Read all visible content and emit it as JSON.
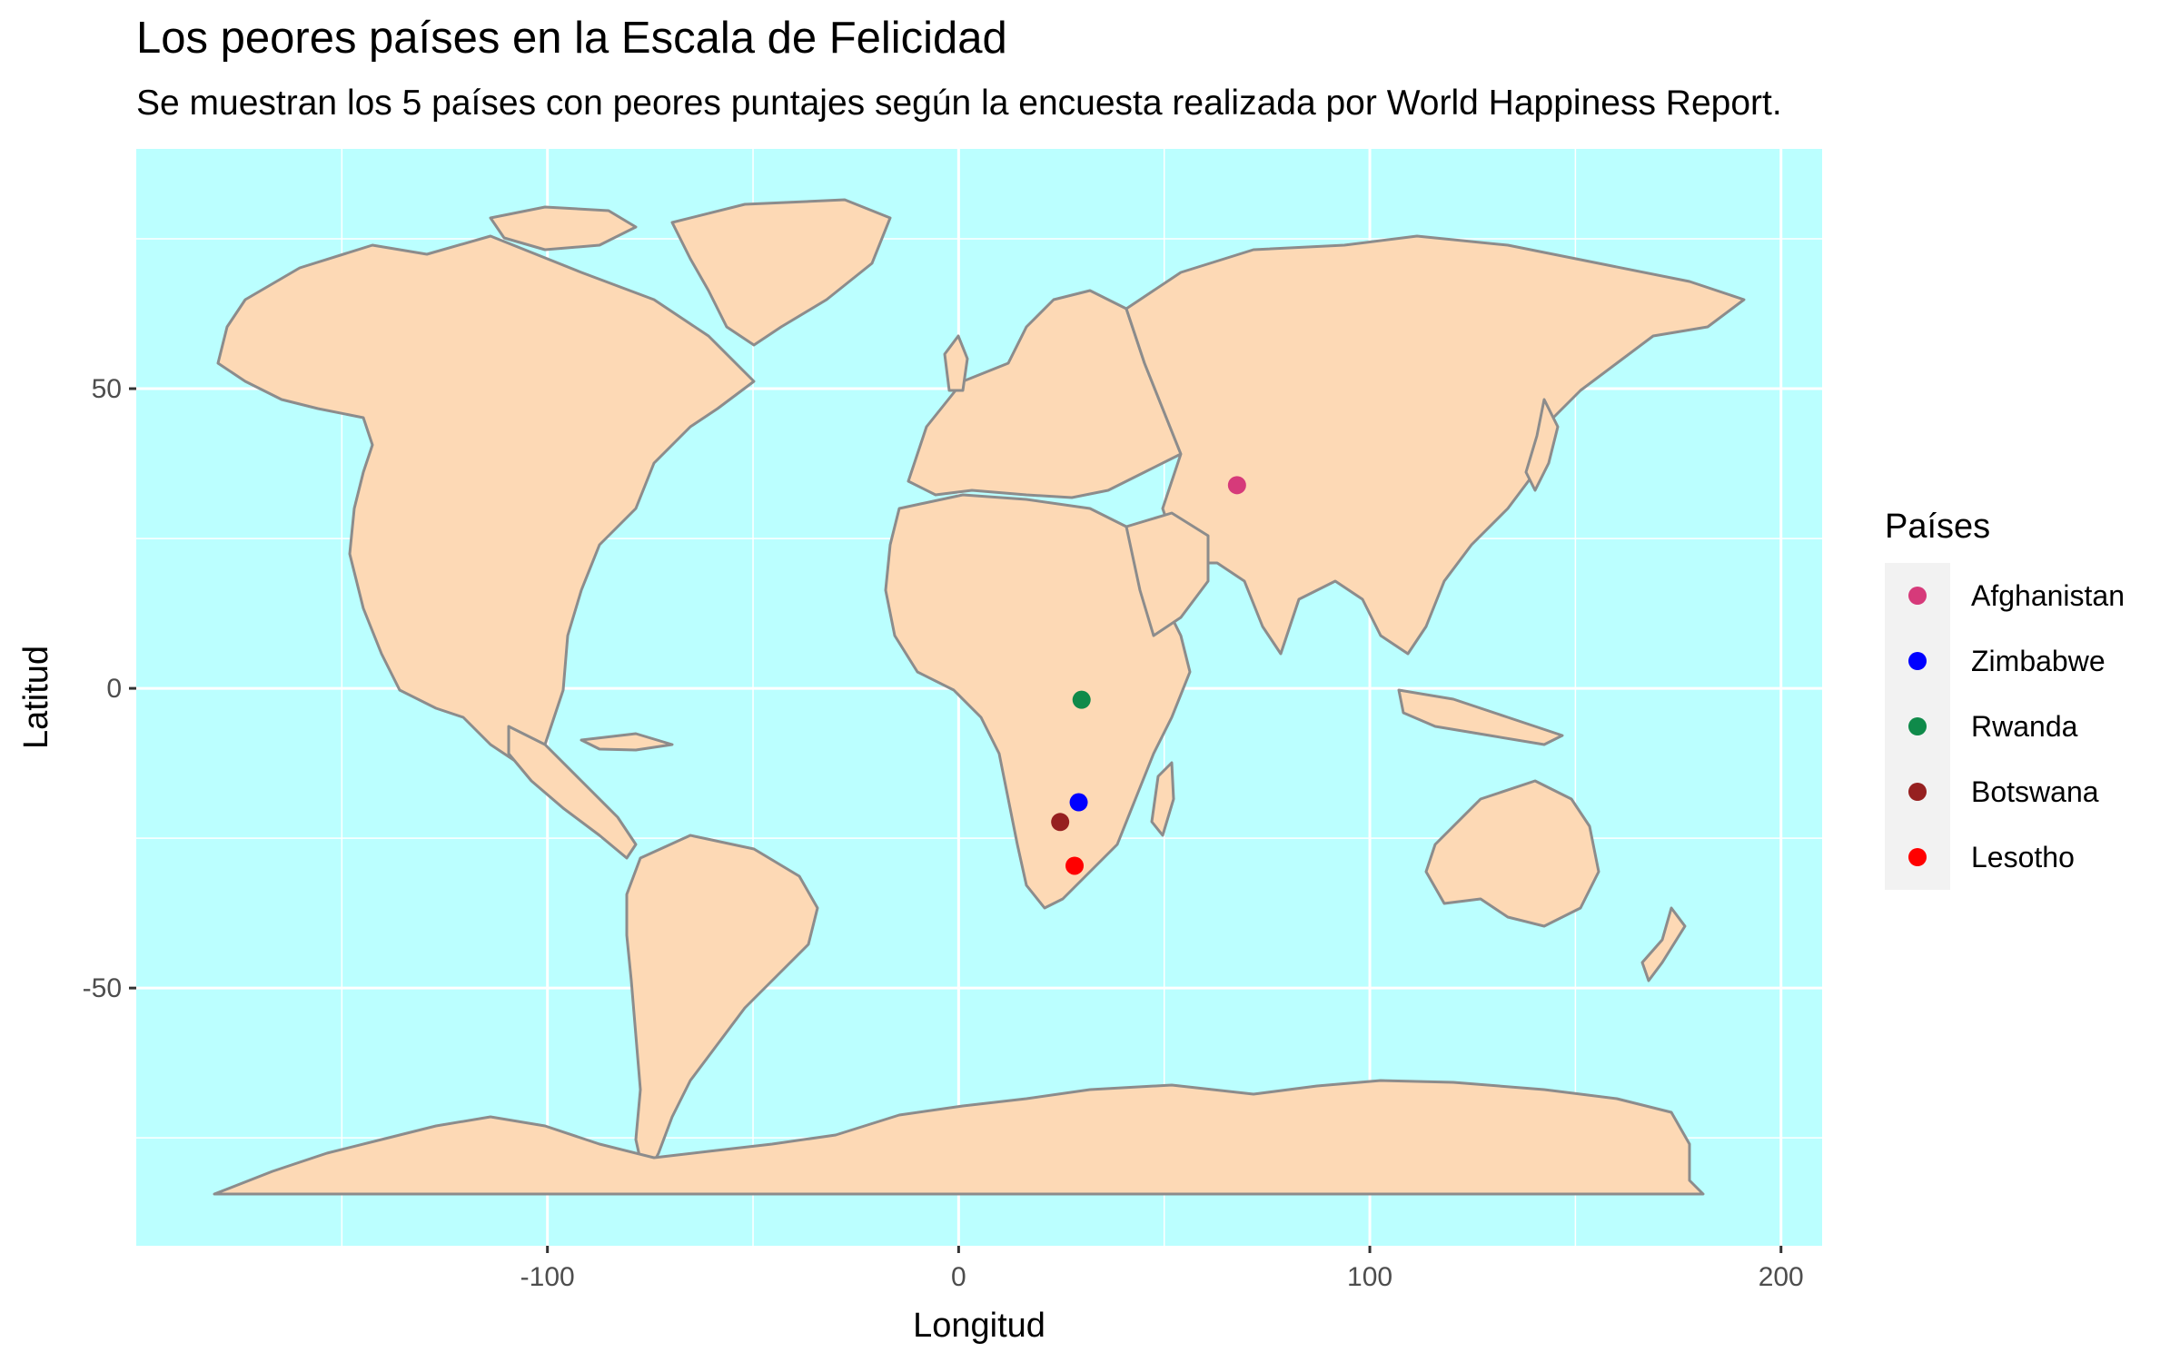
{
  "title": "Los peores países en la Escala de Felicidad",
  "subtitle": "Se muestran los 5 países con peores puntajes según la encuesta realizada por World Happiness Report.",
  "colors": {
    "ocean": "#bbffff",
    "land": "#fdd9b5",
    "border": "#8c8c8c",
    "grid": "#ffffff"
  },
  "chart_data": {
    "type": "scatter",
    "xlabel": "Longitud",
    "ylabel": "Latitud",
    "xlim": [
      -200,
      210
    ],
    "ylim": [
      -93,
      90
    ],
    "x_ticks": [
      -100,
      0,
      100,
      200
    ],
    "x_tick_labels": [
      "-100",
      "0",
      "100",
      "200"
    ],
    "y_ticks": [
      -50,
      0,
      50
    ],
    "y_tick_labels": [
      "-50",
      "0",
      "50"
    ],
    "grid": true,
    "legend_title": "Países",
    "legend_position": "right",
    "series": [
      {
        "name": "Afghanistan",
        "color": "#d63a7a",
        "x": 67.7,
        "y": 33.9
      },
      {
        "name": "Zimbabwe",
        "color": "#0000ff",
        "x": 29.2,
        "y": -19.0
      },
      {
        "name": "Rwanda",
        "color": "#0f8a4a",
        "x": 29.9,
        "y": -1.9
      },
      {
        "name": "Botswana",
        "color": "#962020",
        "x": 24.7,
        "y": -22.3
      },
      {
        "name": "Lesotho",
        "color": "#ff0000",
        "x": 28.2,
        "y": -29.6
      }
    ]
  }
}
